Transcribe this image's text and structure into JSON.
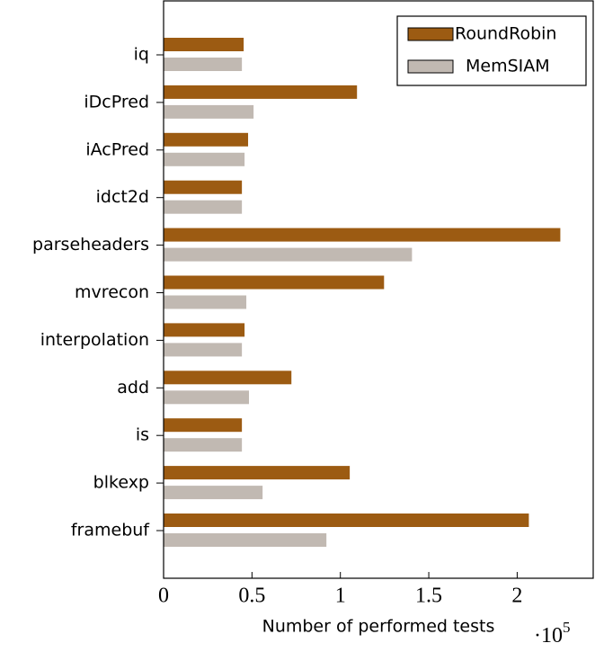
{
  "chart_data": {
    "type": "bar",
    "orientation": "horizontal",
    "categories": [
      "iq",
      "iDcPred",
      "iAcPred",
      "idct2d",
      "parseheaders",
      "mvrecon",
      "interpolation",
      "add",
      "is",
      "blkexp",
      "framebuf"
    ],
    "series": [
      {
        "name": "RoundRobin",
        "color": "#9c5b12",
        "values": [
          0.453,
          1.094,
          0.478,
          0.443,
          2.244,
          1.247,
          0.458,
          0.723,
          0.443,
          1.053,
          2.066
        ]
      },
      {
        "name": "MemSIAM",
        "color": "#c1b9b2",
        "values": [
          0.443,
          0.509,
          0.458,
          0.443,
          1.405,
          0.468,
          0.443,
          0.483,
          0.443,
          0.56,
          0.921
        ]
      }
    ],
    "xlabel": "Number of performed tests",
    "x_multiplier_base": "·10",
    "x_multiplier_exponent": 5,
    "xlim": [
      0,
      2.43
    ],
    "xticks": [
      0,
      0.5,
      1,
      1.5,
      2
    ],
    "legend": "top-right"
  }
}
